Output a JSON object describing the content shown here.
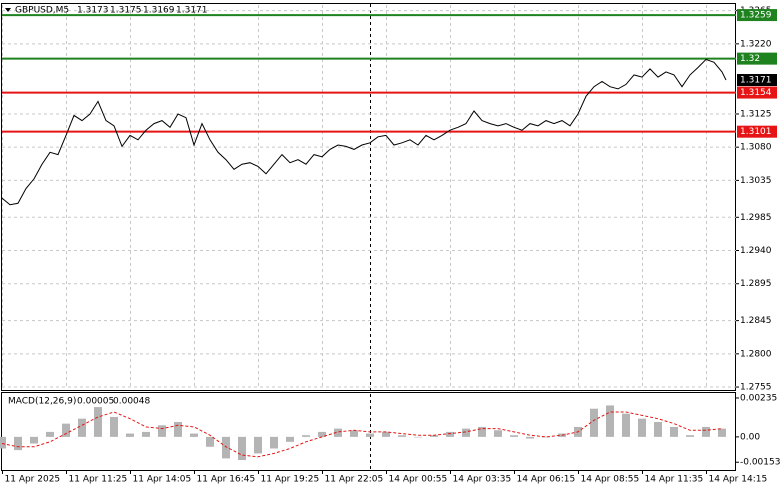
{
  "chart_data": [
    {
      "type": "line",
      "title": "GBPUSD,M5",
      "readout": [
        1.3173,
        1.3175,
        1.3169,
        1.3171
      ],
      "last": 1.3171,
      "color": "#000000",
      "grid": true,
      "xlim": [
        0,
        367
      ],
      "ylim": [
        1.2751,
        1.3274
      ],
      "yticks": [
        1.3265,
        {
          "value": 1.322,
          "label": "1.3220"
        },
        1.3125,
        {
          "value": 1.308,
          "label": "1.3080"
        },
        1.3035,
        1.2985,
        {
          "value": 1.294,
          "label": "1.2940"
        },
        1.2895,
        1.2845,
        {
          "value": 1.28,
          "label": "1.2800"
        },
        1.2755
      ],
      "levels": [
        {
          "value": 1.3259,
          "color": "#1e821e"
        },
        {
          "value": 1.32,
          "color": "#1e821e"
        },
        {
          "value": 1.3154,
          "color": "#e61414"
        },
        {
          "value": 1.3101,
          "color": "#e61414"
        }
      ],
      "x": [
        0,
        4,
        8,
        12,
        16,
        20,
        24,
        28,
        32,
        36,
        40,
        44,
        48,
        52,
        56,
        60,
        64,
        68,
        72,
        76,
        80,
        84,
        88,
        92,
        96,
        100,
        104,
        108,
        112,
        116,
        120,
        124,
        128,
        132,
        136,
        140,
        144,
        148,
        152,
        156,
        160,
        164,
        168,
        172,
        176,
        180,
        184,
        188,
        192,
        196,
        200,
        204,
        208,
        212,
        216,
        220,
        224,
        228,
        232,
        236,
        240,
        244,
        248,
        252,
        256,
        260,
        264,
        268,
        272,
        276,
        280,
        284,
        288,
        292,
        296,
        300,
        304,
        308,
        312,
        316,
        320,
        324,
        328,
        332,
        336,
        340,
        344,
        348,
        352,
        356,
        360,
        362
      ],
      "values": [
        1.3011,
        1.3002,
        1.3004,
        1.3024,
        1.3037,
        1.3057,
        1.3073,
        1.307,
        1.3096,
        1.3123,
        1.3116,
        1.3125,
        1.3142,
        1.3116,
        1.3109,
        1.3081,
        1.3096,
        1.309,
        1.3103,
        1.3112,
        1.3116,
        1.3107,
        1.3125,
        1.312,
        1.3083,
        1.3112,
        1.309,
        1.3073,
        1.3063,
        1.305,
        1.3057,
        1.3059,
        1.3054,
        1.3044,
        1.3057,
        1.307,
        1.3059,
        1.3063,
        1.3057,
        1.307,
        1.3067,
        1.3077,
        1.3083,
        1.3081,
        1.3077,
        1.3083,
        1.3086,
        1.3094,
        1.3096,
        1.3083,
        1.3086,
        1.309,
        1.3083,
        1.3096,
        1.309,
        1.3096,
        1.3103,
        1.3107,
        1.3112,
        1.3129,
        1.3116,
        1.3112,
        1.3109,
        1.3112,
        1.3107,
        1.3103,
        1.3112,
        1.3109,
        1.3116,
        1.3112,
        1.3116,
        1.3109,
        1.3125,
        1.3149,
        1.3162,
        1.3169,
        1.3162,
        1.3159,
        1.3165,
        1.3178,
        1.3175,
        1.3186,
        1.3175,
        1.3182,
        1.3178,
        1.3162,
        1.3178,
        1.3188,
        1.3199,
        1.3195,
        1.3182,
        1.3171
      ]
    },
    {
      "type": "macd",
      "title": "MACD(12,26,9)",
      "readout": [
        5e-05,
        0.00048
      ],
      "color": "#b4b4b4",
      "signal_color": "#e61414",
      "xlim": [
        0,
        367
      ],
      "ylim": [
        -0.002,
        0.00265
      ],
      "yticks": [
        0.00235,
        {
          "value": 0,
          "label": "0.00"
        },
        -0.00153
      ],
      "xticks": [
        {
          "value": 0,
          "label": "11 Apr 2025"
        },
        {
          "value": 32,
          "label": "11 Apr 11:25"
        },
        {
          "value": 64,
          "label": "11 Apr 14:05"
        },
        {
          "value": 96,
          "label": "11 Apr 16:45"
        },
        {
          "value": 128,
          "label": "11 Apr 19:25"
        },
        {
          "value": 160,
          "label": "11 Apr 22:05"
        },
        {
          "value": 192,
          "label": "14 Apr 00:55"
        },
        {
          "value": 224,
          "label": "14 Apr 03:35"
        },
        {
          "value": 256,
          "label": "14 Apr 06:15"
        },
        {
          "value": 288,
          "label": "14 Apr 08:55"
        },
        {
          "value": 320,
          "label": "14 Apr 11:35"
        },
        {
          "value": 352,
          "label": "14 Apr 14:15"
        }
      ],
      "x": [
        0,
        8,
        16,
        24,
        32,
        40,
        48,
        56,
        64,
        72,
        80,
        88,
        96,
        104,
        112,
        120,
        128,
        136,
        144,
        152,
        160,
        168,
        176,
        184,
        192,
        200,
        208,
        216,
        224,
        232,
        240,
        248,
        256,
        264,
        272,
        280,
        288,
        296,
        304,
        312,
        320,
        328,
        336,
        344,
        352,
        360
      ],
      "values": [
        -0.0007,
        -0.0008,
        -0.0004,
        0.0003,
        0.0008,
        0.0011,
        0.0018,
        0.0012,
        0.0002,
        0.0003,
        0.0007,
        0.0009,
        0.0002,
        -0.0006,
        -0.0013,
        -0.0014,
        -0.001,
        -0.0007,
        -0.0003,
        0.0001,
        0.0003,
        0.0005,
        0.0004,
        0.0002,
        0.0003,
        0.0001,
        0,
        0.0001,
        0.0003,
        0.0005,
        0.0006,
        0.0004,
        0.0001,
        -0.0001,
        0,
        0.0002,
        0.0006,
        0.0017,
        0.0019,
        0.0014,
        0.0011,
        0.0009,
        0.0006,
        0.0001,
        0.0006,
        0.0005
      ],
      "signal": [
        -0.0004,
        -0.0006,
        -0.0006,
        -0.0003,
        0.0002,
        0.0007,
        0.0012,
        0.0015,
        0.0011,
        0.0006,
        0.0005,
        0.0007,
        0.0006,
        0.0001,
        -0.0006,
        -0.0011,
        -0.0012,
        -0.001,
        -0.0007,
        -0.0003,
        0,
        0.0003,
        0.0004,
        0.0003,
        0.0003,
        0.0002,
        0.0001,
        0.0001,
        0.0002,
        0.0003,
        0.0005,
        0.0005,
        0.0003,
        0.0001,
        0,
        0.0001,
        0.0003,
        0.001,
        0.0015,
        0.0015,
        0.0013,
        0.0011,
        0.0008,
        0.0004,
        0.0004,
        0.0005
      ]
    }
  ]
}
